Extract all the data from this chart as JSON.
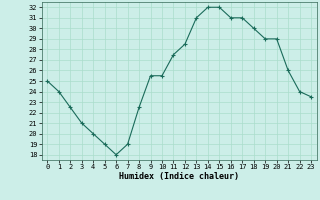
{
  "x": [
    0,
    1,
    2,
    3,
    4,
    5,
    6,
    7,
    8,
    9,
    10,
    11,
    12,
    13,
    14,
    15,
    16,
    17,
    18,
    19,
    20,
    21,
    22,
    23
  ],
  "y": [
    25,
    24,
    22.5,
    21,
    20,
    19,
    18,
    19,
    22.5,
    25.5,
    25.5,
    27.5,
    28.5,
    31,
    32,
    32,
    31,
    31,
    30,
    29,
    29,
    26,
    24,
    23.5
  ],
  "line_color": "#1a6b5a",
  "marker": "+",
  "marker_size": 3,
  "marker_lw": 0.8,
  "line_width": 0.8,
  "bg_color": "#cceee8",
  "grid_color": "#aaddcc",
  "xlabel": "Humidex (Indice chaleur)",
  "xlabel_fontsize": 6,
  "xlabel_fontweight": "bold",
  "tick_fontsize": 5,
  "xlim": [
    -0.5,
    23.5
  ],
  "ylim": [
    17.5,
    32.5
  ],
  "yticks": [
    18,
    19,
    20,
    21,
    22,
    23,
    24,
    25,
    26,
    27,
    28,
    29,
    30,
    31,
    32
  ],
  "xticks": [
    0,
    1,
    2,
    3,
    4,
    5,
    6,
    7,
    8,
    9,
    10,
    11,
    12,
    13,
    14,
    15,
    16,
    17,
    18,
    19,
    20,
    21,
    22,
    23
  ]
}
